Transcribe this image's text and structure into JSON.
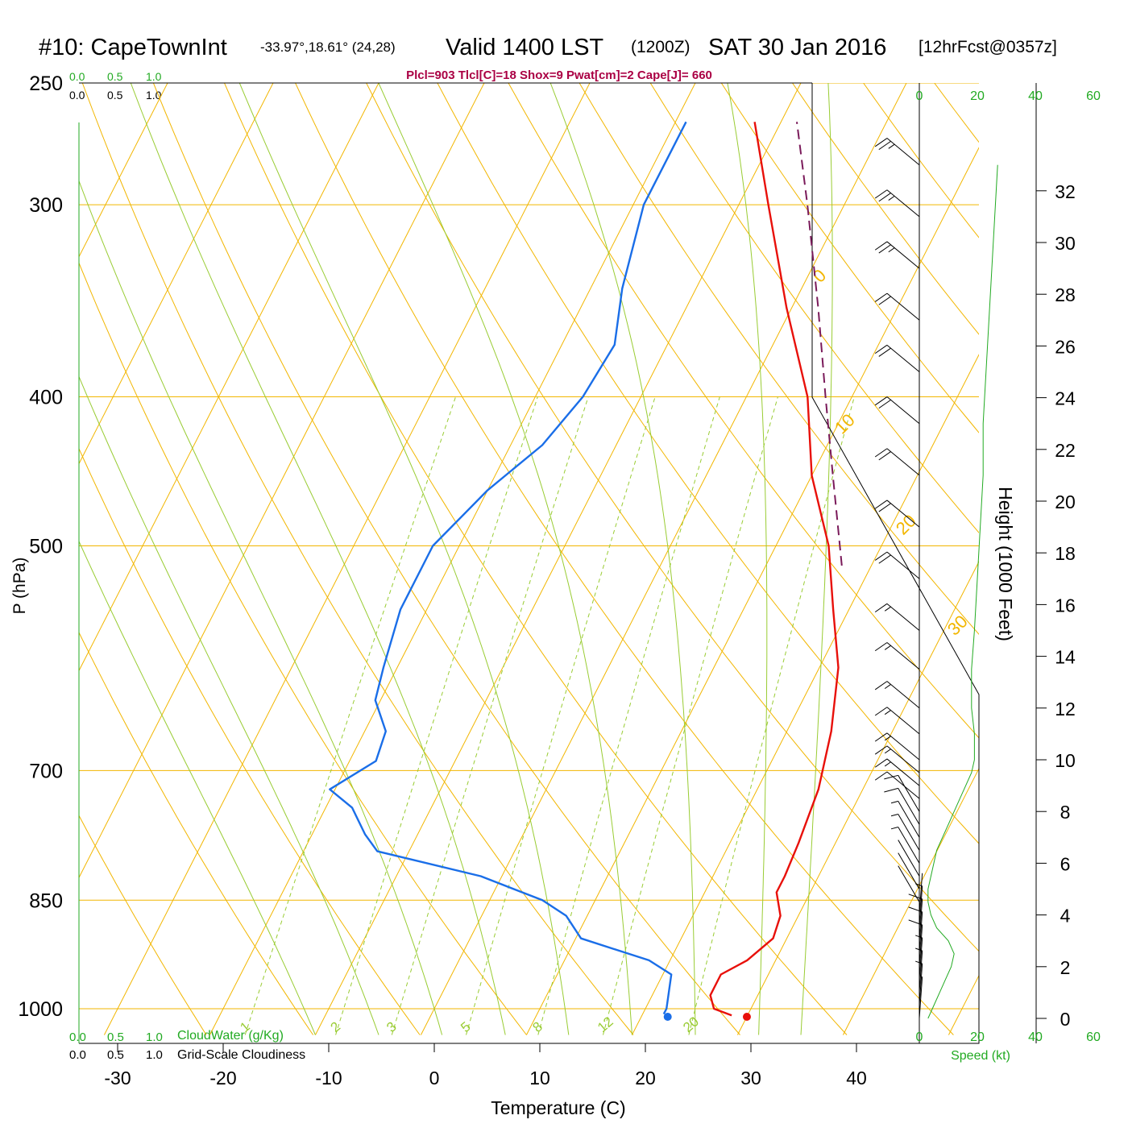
{
  "header": {
    "station": "#10: CapeTownInt",
    "coords": "-33.97°,18.61° (24,28)",
    "valid": "Valid 1400 LST",
    "zulu": "(1200Z)",
    "date": "SAT 30 Jan 2016",
    "forecast": "[12hrFcst@0357z]"
  },
  "stats_line": "Plcl=903 Tlcl[C]=18 Shox=9 Pwat[cm]=2 Cape[J]= 660",
  "legends": {
    "cloudwater_scale": [
      "0.0",
      "0.5",
      "1.0"
    ],
    "cloudiness_scale": [
      "0.0",
      "0.5",
      "1.0"
    ],
    "cloudwater_label": "CloudWater (g/Kg)",
    "cloudiness_label": "Grid-Scale Cloudiness"
  },
  "colors": {
    "isotherm": "#f2b600",
    "dry_adiabat": "#f2b600",
    "moist_adiabat": "#99cc33",
    "mixing_ratio": "#99cc33",
    "temperature": "#e8100a",
    "dewpoint": "#1a6ee8",
    "parcel": "#7a1a5a",
    "wind_speed": "#22aa22",
    "stats_text": "#aa0044",
    "legend_green": "#22aa22"
  },
  "chart_data": {
    "type": "line",
    "subtype": "skew-t log-p sounding",
    "xlabel": "Temperature (C)",
    "ylabel": "P (hPa)",
    "right_axis_label": "Height (1000 Feet)",
    "xlim": [
      -30,
      45
    ],
    "ylim_hpa": [
      1020,
      250
    ],
    "x_ticks": [
      -30,
      -20,
      -10,
      0,
      10,
      20,
      30,
      40
    ],
    "p_ticks": [
      250,
      300,
      400,
      500,
      700,
      850,
      1000
    ],
    "height_ticks": [
      0,
      2,
      4,
      6,
      8,
      10,
      12,
      14,
      16,
      18,
      20,
      22,
      24,
      26,
      28,
      30,
      32
    ],
    "isotherm_labels": [
      {
        "t": 10,
        "label": "10"
      },
      {
        "t": 0,
        "label": "0"
      },
      {
        "t": -10,
        "label": "-10"
      },
      {
        "t": -20,
        "label": "-20"
      },
      {
        "t": -30,
        "label": "-30"
      }
    ],
    "right_isotherm_labels": [
      "0",
      "10",
      "20",
      "30"
    ],
    "mixing_ratio_labels": [
      "1",
      "2",
      "3",
      "5",
      "8",
      "12",
      "20"
    ],
    "temperature": {
      "name": "Temperature",
      "points": [
        [
          1010,
          28.5
        ],
        [
          1000,
          26.5
        ],
        [
          980,
          25.5
        ],
        [
          950,
          25.5
        ],
        [
          930,
          27.3
        ],
        [
          900,
          28.7
        ],
        [
          870,
          28.3
        ],
        [
          840,
          26.8
        ],
        [
          820,
          26.8
        ],
        [
          780,
          26.5
        ],
        [
          720,
          25.8
        ],
        [
          660,
          24.2
        ],
        [
          600,
          21.8
        ],
        [
          550,
          18.5
        ],
        [
          500,
          15.0
        ],
        [
          450,
          10.0
        ],
        [
          400,
          5.8
        ],
        [
          350,
          -0.5
        ],
        [
          300,
          -7.2
        ],
        [
          265,
          -12.5
        ]
      ]
    },
    "dewpoint": {
      "name": "Dewpoint",
      "points": [
        [
          1008,
          22.0
        ],
        [
          1000,
          22.0
        ],
        [
          950,
          20.8
        ],
        [
          930,
          18.0
        ],
        [
          900,
          10.5
        ],
        [
          870,
          8.0
        ],
        [
          850,
          5.0
        ],
        [
          820,
          -2.0
        ],
        [
          790,
          -13.0
        ],
        [
          770,
          -15.0
        ],
        [
          740,
          -17.5
        ],
        [
          720,
          -20.5
        ],
        [
          690,
          -17.5
        ],
        [
          660,
          -18.0
        ],
        [
          630,
          -20.5
        ],
        [
          600,
          -21.3
        ],
        [
          550,
          -22.5
        ],
        [
          500,
          -22.5
        ],
        [
          460,
          -20.0
        ],
        [
          430,
          -17.0
        ],
        [
          400,
          -15.5
        ],
        [
          370,
          -15.0
        ],
        [
          340,
          -17.0
        ],
        [
          300,
          -19.0
        ],
        [
          265,
          -19.0
        ]
      ]
    },
    "parcel": {
      "name": "Parcel",
      "points": [
        [
          515,
          17.2
        ],
        [
          450,
          12.0
        ],
        [
          400,
          7.5
        ],
        [
          350,
          2.5
        ],
        [
          300,
          -3.5
        ],
        [
          265,
          -8.5
        ]
      ]
    },
    "surface_points": {
      "temperature_c": 30,
      "dewpoint_c": 22.5
    },
    "winds": {
      "speed_axis_ticks": [
        0,
        20,
        40,
        60
      ],
      "speed_label": "Speed (kt)",
      "heights_kft": [
        33,
        31,
        29,
        27,
        25,
        23,
        21,
        19,
        17,
        15,
        13.5,
        12,
        11,
        10,
        9.5,
        9,
        8.5,
        8,
        7.5,
        7,
        6.5,
        6,
        5.5,
        5,
        4.5,
        4,
        3.5,
        3,
        2.5,
        2,
        1.5,
        1,
        0.5,
        0
      ],
      "speeds_kt": [
        27,
        26,
        25,
        24,
        23,
        22,
        22,
        21,
        20,
        19,
        18,
        18,
        19,
        19,
        18,
        16,
        14,
        12,
        10,
        8,
        6,
        5,
        4,
        3,
        3,
        4,
        6,
        10,
        12,
        11,
        9,
        7,
        5,
        3
      ]
    }
  }
}
